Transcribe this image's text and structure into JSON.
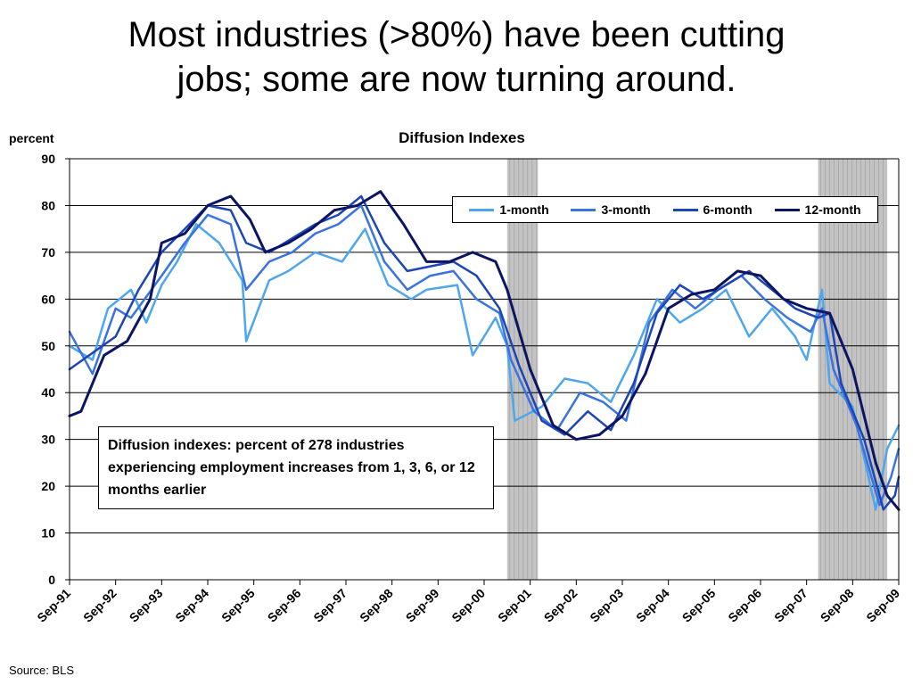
{
  "slide": {
    "title_line1": "Most industries (>80%) have been cutting",
    "title_line2": "jobs; some are now turning around."
  },
  "note": "Diffusion indexes: percent of 278 industries experiencing employment increases from 1, 3, 6, or 12 months earlier",
  "source": "Source: BLS",
  "chart_data": {
    "type": "line",
    "title": "Diffusion Indexes",
    "ylabel": "percent",
    "xlabel": "",
    "ylim": [
      0,
      90
    ],
    "yticks": [
      0,
      10,
      20,
      30,
      40,
      50,
      60,
      70,
      80,
      90
    ],
    "xticks": [
      "Sep-91",
      "Sep-92",
      "Sep-93",
      "Sep-94",
      "Sep-95",
      "Sep-96",
      "Sep-97",
      "Sep-98",
      "Sep-99",
      "Sep-00",
      "Sep-01",
      "Sep-02",
      "Sep-03",
      "Sep-04",
      "Sep-05",
      "Sep-06",
      "Sep-07",
      "Sep-08",
      "Sep-09"
    ],
    "grid": "horizontal",
    "legend_position": "top-right",
    "recessions": [
      {
        "start": "2001-03",
        "end": "2001-11"
      },
      {
        "start": "2007-12",
        "end": "2009-06"
      }
    ],
    "x_start": "Sep-91",
    "x_end": "Sep-09",
    "series": [
      {
        "name": "1-month",
        "color": "#4ea6ec",
        "stroke": 2.5,
        "points": [
          [
            "Sep-91",
            50
          ],
          [
            "Mar-92",
            47
          ],
          [
            "Jul-92",
            58
          ],
          [
            "Jan-93",
            62
          ],
          [
            "May-93",
            55
          ],
          [
            "Sep-93",
            63
          ],
          [
            "Jan-94",
            68
          ],
          [
            "Jun-94",
            76
          ],
          [
            "Dec-94",
            72
          ],
          [
            "Jun-95",
            64
          ],
          [
            "Jul-95",
            51
          ],
          [
            "Jan-96",
            64
          ],
          [
            "Jun-96",
            66
          ],
          [
            "Jan-97",
            70
          ],
          [
            "Aug-97",
            68
          ],
          [
            "Feb-98",
            75
          ],
          [
            "Aug-98",
            63
          ],
          [
            "Feb-99",
            60
          ],
          [
            "Jun-99",
            62
          ],
          [
            "Feb-00",
            63
          ],
          [
            "Jun-00",
            48
          ],
          [
            "Dec-00",
            56
          ],
          [
            "Mar-01",
            50
          ],
          [
            "May-01",
            34
          ],
          [
            "Dec-01",
            37
          ],
          [
            "Jun-02",
            43
          ],
          [
            "Dec-02",
            42
          ],
          [
            "Jun-03",
            38
          ],
          [
            "Dec-03",
            48
          ],
          [
            "Jun-04",
            60
          ],
          [
            "Dec-04",
            55
          ],
          [
            "Jun-05",
            58
          ],
          [
            "Dec-05",
            62
          ],
          [
            "Jun-06",
            52
          ],
          [
            "Dec-06",
            58
          ],
          [
            "Jun-07",
            52
          ],
          [
            "Sep-07",
            47
          ],
          [
            "Jan-08",
            62
          ],
          [
            "Mar-08",
            42
          ],
          [
            "Sep-08",
            37
          ],
          [
            "Mar-09",
            15
          ],
          [
            "Jun-09",
            28
          ],
          [
            "Sep-09",
            33
          ]
        ]
      },
      {
        "name": "3-month",
        "color": "#3a73e0",
        "stroke": 2.5,
        "points": [
          [
            "Sep-91",
            53
          ],
          [
            "Mar-92",
            44
          ],
          [
            "Sep-92",
            58
          ],
          [
            "Jan-93",
            56
          ],
          [
            "Sep-93",
            65
          ],
          [
            "Mar-94",
            72
          ],
          [
            "Sep-94",
            78
          ],
          [
            "Mar-95",
            76
          ],
          [
            "Jul-95",
            62
          ],
          [
            "Jan-96",
            68
          ],
          [
            "Jul-96",
            70
          ],
          [
            "Jan-97",
            74
          ],
          [
            "Jul-97",
            76
          ],
          [
            "Jan-98",
            80
          ],
          [
            "Jul-98",
            68
          ],
          [
            "Jan-99",
            62
          ],
          [
            "Jul-99",
            65
          ],
          [
            "Jan-00",
            66
          ],
          [
            "Jul-00",
            60
          ],
          [
            "Jan-01",
            57
          ],
          [
            "Apr-01",
            47
          ],
          [
            "Oct-01",
            36
          ],
          [
            "Apr-02",
            32
          ],
          [
            "Oct-02",
            40
          ],
          [
            "Apr-03",
            38
          ],
          [
            "Oct-03",
            34
          ],
          [
            "Apr-04",
            55
          ],
          [
            "Oct-04",
            62
          ],
          [
            "Apr-05",
            58
          ],
          [
            "Oct-05",
            62
          ],
          [
            "Apr-06",
            65
          ],
          [
            "Oct-06",
            60
          ],
          [
            "Apr-07",
            56
          ],
          [
            "Oct-07",
            53
          ],
          [
            "Jan-08",
            58
          ],
          [
            "Apr-08",
            45
          ],
          [
            "Oct-08",
            33
          ],
          [
            "Apr-09",
            16
          ],
          [
            "Jul-09",
            22
          ],
          [
            "Sep-09",
            28
          ]
        ]
      },
      {
        "name": "6-month",
        "color": "#1c45b5",
        "stroke": 2.5,
        "points": [
          [
            "Sep-91",
            45
          ],
          [
            "Sep-92",
            52
          ],
          [
            "Mar-93",
            62
          ],
          [
            "Sep-93",
            70
          ],
          [
            "Mar-94",
            75
          ],
          [
            "Sep-94",
            80
          ],
          [
            "Mar-95",
            79
          ],
          [
            "Jul-95",
            72
          ],
          [
            "Jan-96",
            70
          ],
          [
            "Jul-96",
            73
          ],
          [
            "Jan-97",
            76
          ],
          [
            "Jul-97",
            78
          ],
          [
            "Jan-98",
            82
          ],
          [
            "Jul-98",
            72
          ],
          [
            "Jan-99",
            66
          ],
          [
            "Jul-99",
            67
          ],
          [
            "Jan-00",
            68
          ],
          [
            "Jul-00",
            65
          ],
          [
            "Jan-01",
            58
          ],
          [
            "Jun-01",
            46
          ],
          [
            "Dec-01",
            34
          ],
          [
            "Jun-02",
            31
          ],
          [
            "Dec-02",
            36
          ],
          [
            "Jun-03",
            32
          ],
          [
            "Dec-03",
            42
          ],
          [
            "Jun-04",
            57
          ],
          [
            "Dec-04",
            63
          ],
          [
            "Jun-05",
            60
          ],
          [
            "Dec-05",
            63
          ],
          [
            "Jun-06",
            66
          ],
          [
            "Dec-06",
            62
          ],
          [
            "Jun-07",
            58
          ],
          [
            "Dec-07",
            56
          ],
          [
            "Mar-08",
            57
          ],
          [
            "Jun-08",
            42
          ],
          [
            "Dec-08",
            30
          ],
          [
            "May-09",
            15
          ],
          [
            "Aug-09",
            18
          ],
          [
            "Sep-09",
            22
          ]
        ]
      },
      {
        "name": "12-month",
        "color": "#0c1564",
        "stroke": 3,
        "points": [
          [
            "Sep-91",
            35
          ],
          [
            "Dec-91",
            36
          ],
          [
            "Jun-92",
            48
          ],
          [
            "Dec-92",
            51
          ],
          [
            "Jun-93",
            60
          ],
          [
            "Sep-93",
            72
          ],
          [
            "Mar-94",
            74
          ],
          [
            "Sep-94",
            80
          ],
          [
            "Mar-95",
            82
          ],
          [
            "Aug-95",
            77
          ],
          [
            "Dec-95",
            70
          ],
          [
            "Jun-96",
            72
          ],
          [
            "Dec-96",
            75
          ],
          [
            "Jun-97",
            79
          ],
          [
            "Dec-97",
            80
          ],
          [
            "Jun-98",
            83
          ],
          [
            "Dec-98",
            76
          ],
          [
            "Jun-99",
            68
          ],
          [
            "Dec-99",
            68
          ],
          [
            "Jun-00",
            70
          ],
          [
            "Dec-00",
            68
          ],
          [
            "Mar-01",
            62
          ],
          [
            "Sep-01",
            45
          ],
          [
            "Mar-02",
            33
          ],
          [
            "Sep-02",
            30
          ],
          [
            "Mar-03",
            31
          ],
          [
            "Sep-03",
            35
          ],
          [
            "Mar-04",
            44
          ],
          [
            "Sep-04",
            58
          ],
          [
            "Mar-05",
            61
          ],
          [
            "Sep-05",
            62
          ],
          [
            "Mar-06",
            66
          ],
          [
            "Sep-06",
            65
          ],
          [
            "Mar-07",
            60
          ],
          [
            "Sep-07",
            58
          ],
          [
            "Mar-08",
            57
          ],
          [
            "Sep-08",
            45
          ],
          [
            "Mar-09",
            25
          ],
          [
            "Jun-09",
            18
          ],
          [
            "Sep-09",
            15
          ]
        ]
      }
    ]
  }
}
